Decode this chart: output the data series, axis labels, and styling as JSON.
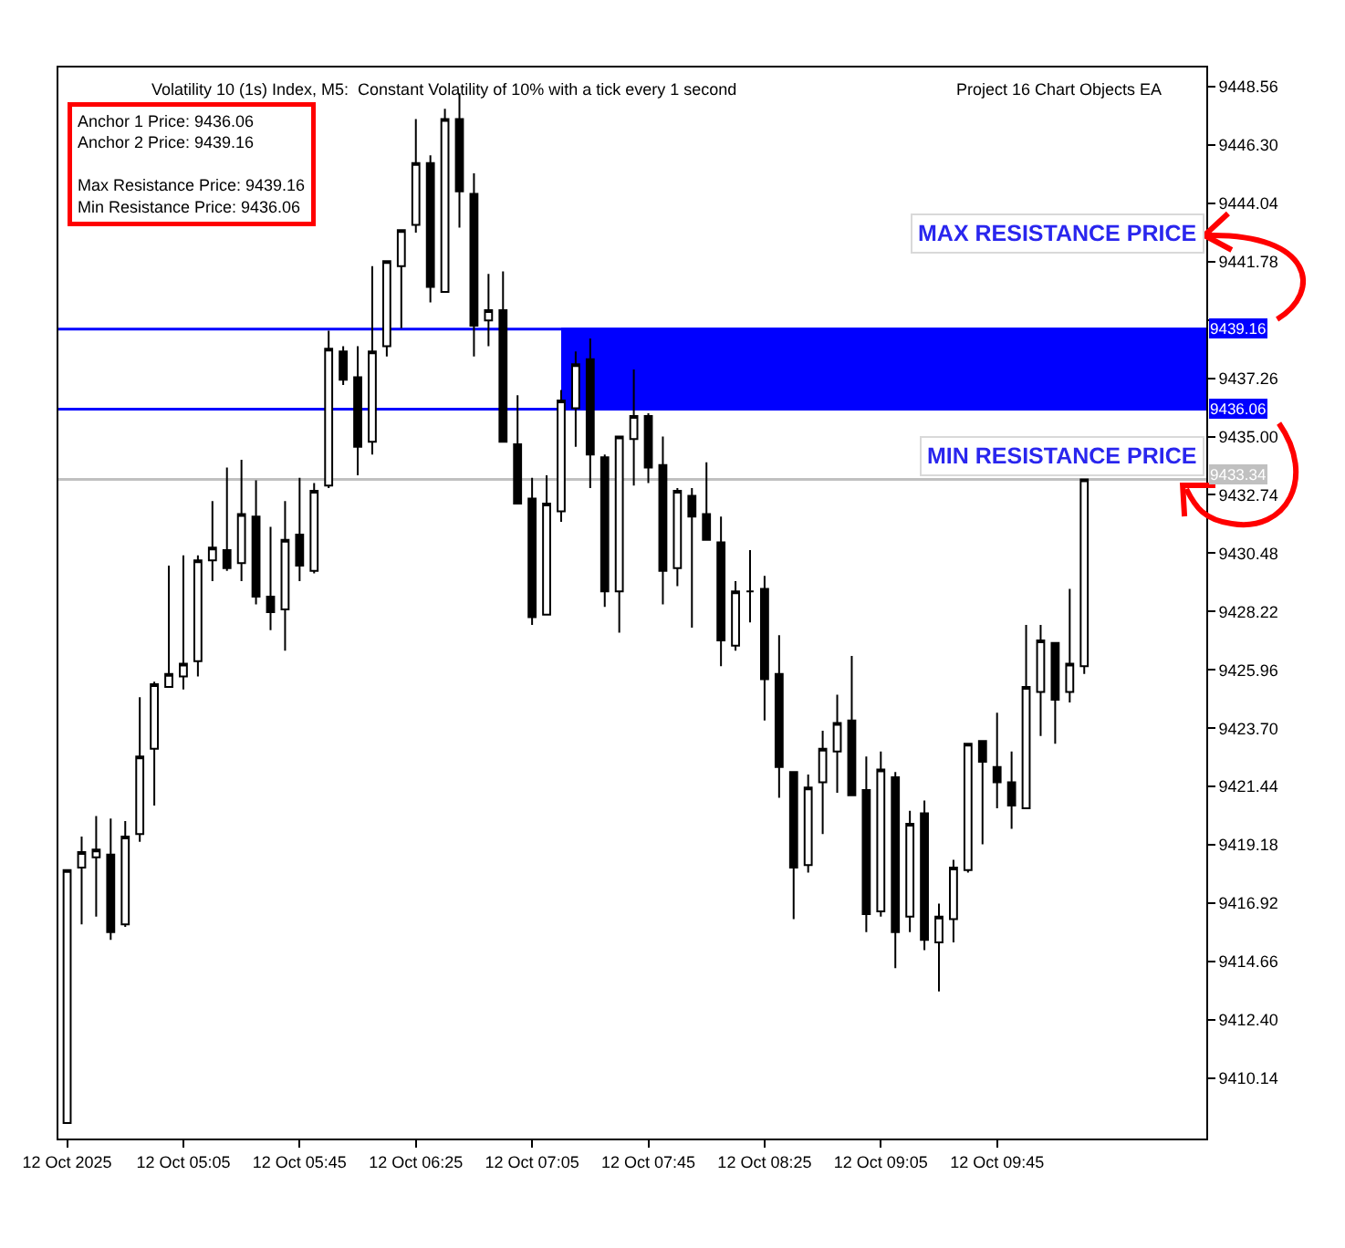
{
  "chart_data": {
    "type": "candlestick",
    "title": "Volatility 10 (1s) Index, M5:  Constant Volatility of 10% with a tick every 1 second",
    "subtitle": "Project 16 Chart Objects EA",
    "annotations": [
      "Anchor 1 Price: 9436.06\nAnchor 2 Price: 9439.16\n\nMax Resistance Price: 9439.16\nMin Resistance Price: 9436.06",
      "MAX RESISTANCE PRICE",
      "MIN RESISTANCE PRICE"
    ],
    "series": [
      {
        "type": "line",
        "color": "#0000ff",
        "x": [
          "2025-10-12T07:15",
          "2025-10-12T10:57"
        ],
        "values": [
          9439.16,
          9439.16
        ],
        "lower": [
          9436.06,
          9436.06
        ],
        "upper": [
          9439.16,
          9439.16
        ]
      },
      {
        "color": "#000000",
        "x": [
          "2025-10-12T04:25",
          "2025-10-12T04:30",
          "2025-10-12T04:35",
          "2025-10-12T04:40",
          "2025-10-12T04:45",
          "2025-10-12T04:50",
          "2025-10-12T04:55",
          "2025-10-12T05:00",
          "2025-10-12T05:05",
          "2025-10-12T05:10",
          "2025-10-12T05:15",
          "2025-10-12T05:20",
          "2025-10-12T05:25",
          "2025-10-12T05:30",
          "2025-10-12T05:35",
          "2025-10-12T05:40",
          "2025-10-12T05:45",
          "2025-10-12T05:50",
          "2025-10-12T05:55",
          "2025-10-12T06:00",
          "2025-10-12T06:05",
          "2025-10-12T06:10",
          "2025-10-12T06:15",
          "2025-10-12T06:20",
          "2025-10-12T06:25",
          "2025-10-12T06:30",
          "2025-10-12T06:35",
          "2025-10-12T06:40",
          "2025-10-12T06:45",
          "2025-10-12T06:50",
          "2025-10-12T06:55",
          "2025-10-12T07:00",
          "2025-10-12T07:05",
          "2025-10-12T07:10",
          "2025-10-12T07:15",
          "2025-10-12T07:20",
          "2025-10-12T07:25",
          "2025-10-12T07:30",
          "2025-10-12T07:35",
          "2025-10-12T07:40",
          "2025-10-12T07:45",
          "2025-10-12T07:50",
          "2025-10-12T07:55",
          "2025-10-12T08:00",
          "2025-10-12T08:05",
          "2025-10-12T08:10",
          "2025-10-12T08:15",
          "2025-10-12T08:20",
          "2025-10-12T08:25",
          "2025-10-12T08:30",
          "2025-10-12T08:35",
          "2025-10-12T08:40",
          "2025-10-12T08:45",
          "2025-10-12T08:50",
          "2025-10-12T08:55",
          "2025-10-12T09:00",
          "2025-10-12T09:05",
          "2025-10-12T09:10",
          "2025-10-12T09:15",
          "2025-10-12T09:20",
          "2025-10-12T09:25",
          "2025-10-12T09:30",
          "2025-10-12T09:35",
          "2025-10-12T09:40",
          "2025-10-12T09:45",
          "2025-10-12T09:50",
          "2025-10-12T09:55",
          "2025-10-12T10:00",
          "2025-10-12T10:05",
          "2025-10-12T10:10",
          "2025-10-12T10:15"
        ],
        "ohlc": [
          [
            9408.4,
            9418.2,
            9408.4,
            9418.2
          ],
          [
            9418.3,
            9419.5,
            9416.1,
            9418.9
          ],
          [
            9418.7,
            9420.3,
            9416.4,
            9419.0
          ],
          [
            9418.8,
            9420.2,
            9415.5,
            9415.8
          ],
          [
            9416.1,
            9420.1,
            9416.0,
            9419.5
          ],
          [
            9419.6,
            9424.9,
            9419.3,
            9422.6
          ],
          [
            9422.9,
            9425.5,
            9420.7,
            9425.4
          ],
          [
            9425.3,
            9430.0,
            9425.3,
            9425.8
          ],
          [
            9425.7,
            9430.4,
            9425.2,
            9426.2
          ],
          [
            9426.3,
            9430.4,
            9425.7,
            9430.2
          ],
          [
            9430.2,
            9432.5,
            9429.4,
            9430.7
          ],
          [
            9430.6,
            9433.8,
            9429.8,
            9429.9
          ],
          [
            9430.1,
            9434.1,
            9429.4,
            9432.0
          ],
          [
            9431.9,
            9433.3,
            9428.5,
            9428.8
          ],
          [
            9428.8,
            9431.5,
            9427.5,
            9428.2
          ],
          [
            9428.3,
            9432.5,
            9426.7,
            9431.0
          ],
          [
            9431.2,
            9433.4,
            9429.4,
            9430.0
          ],
          [
            9429.8,
            9433.2,
            9429.7,
            9432.9
          ],
          [
            9433.1,
            9439.1,
            9433.0,
            9438.4
          ],
          [
            9438.3,
            9438.5,
            9437.0,
            9437.2
          ],
          [
            9437.3,
            9438.5,
            9433.5,
            9434.6
          ],
          [
            9434.8,
            9441.6,
            9434.3,
            9438.3
          ],
          [
            9438.5,
            9441.8,
            9438.1,
            9441.8
          ],
          [
            9441.6,
            9443.0,
            9439.2,
            9443.0
          ],
          [
            9443.2,
            9447.3,
            9442.9,
            9445.6
          ],
          [
            9445.6,
            9445.9,
            9440.2,
            9440.8
          ],
          [
            9440.6,
            9447.7,
            9440.6,
            9447.3
          ],
          [
            9447.3,
            9448.3,
            9443.1,
            9444.5
          ],
          [
            9444.4,
            9445.2,
            9438.1,
            9439.3
          ],
          [
            9439.5,
            9441.3,
            9438.5,
            9439.9
          ],
          [
            9439.9,
            9441.4,
            9434.8,
            9434.8
          ],
          [
            9434.7,
            9436.6,
            9432.4,
            9432.4
          ],
          [
            9432.6,
            9433.4,
            9427.7,
            9428.0
          ],
          [
            9428.1,
            9433.5,
            9428.1,
            9432.4
          ],
          [
            9432.1,
            9436.8,
            9431.7,
            9436.4
          ],
          [
            9436.1,
            9438.3,
            9434.6,
            9437.8
          ],
          [
            9438.0,
            9438.8,
            9433.0,
            9434.3
          ],
          [
            9434.2,
            9434.3,
            9428.4,
            9429.0
          ],
          [
            9429.0,
            9435.0,
            9427.4,
            9435.0
          ],
          [
            9434.9,
            9437.6,
            9433.1,
            9435.8
          ],
          [
            9435.8,
            9435.9,
            9433.2,
            9433.8
          ],
          [
            9433.9,
            9435.0,
            9428.5,
            9429.8
          ],
          [
            9429.9,
            9433.0,
            9429.2,
            9432.9
          ],
          [
            9432.7,
            9433.0,
            9427.6,
            9431.9
          ],
          [
            9432.0,
            9434.0,
            9431.0,
            9431.0
          ],
          [
            9430.9,
            9431.9,
            9426.1,
            9427.1
          ],
          [
            9426.9,
            9429.4,
            9426.7,
            9429.0
          ],
          [
            9429.0,
            9430.6,
            9427.8,
            9429.0
          ],
          [
            9429.1,
            9429.6,
            9424.0,
            9425.6
          ],
          [
            9425.8,
            9427.3,
            9421.0,
            9422.2
          ],
          [
            9422.0,
            9422.0,
            9416.3,
            9418.3
          ],
          [
            9418.4,
            9421.9,
            9418.1,
            9421.4
          ],
          [
            9421.6,
            9423.6,
            9419.6,
            9422.9
          ],
          [
            9422.8,
            9425.0,
            9421.2,
            9423.9
          ],
          [
            9424.0,
            9426.5,
            9421.1,
            9421.1
          ],
          [
            9421.3,
            9422.6,
            9415.8,
            9416.5
          ],
          [
            9416.6,
            9422.8,
            9416.4,
            9422.1
          ],
          [
            9421.8,
            9422.0,
            9414.4,
            9415.8
          ],
          [
            9416.4,
            9420.5,
            9415.8,
            9420.0
          ],
          [
            9420.4,
            9420.9,
            9415.1,
            9415.5
          ],
          [
            9415.4,
            9416.9,
            9413.5,
            9416.4
          ],
          [
            9416.3,
            9418.6,
            9415.4,
            9418.3
          ],
          [
            9418.2,
            9423.1,
            9418.1,
            9423.1
          ],
          [
            9423.2,
            9423.2,
            9419.2,
            9422.4
          ],
          [
            9422.2,
            9424.3,
            9420.6,
            9421.6
          ],
          [
            9421.6,
            9422.8,
            9419.8,
            9420.7
          ],
          [
            9420.6,
            9427.7,
            9420.6,
            9425.3
          ],
          [
            9425.1,
            9427.7,
            9423.4,
            9427.1
          ],
          [
            9427.0,
            9427.0,
            9423.1,
            9424.8
          ],
          [
            9425.1,
            9429.1,
            9424.7,
            9426.2
          ],
          [
            9426.1,
            9433.34,
            9425.8,
            9433.34
          ]
        ]
      }
    ],
    "xlim": [
      "2025-10-12T04:22",
      "2025-10-12T10:57"
    ],
    "xticks": [
      {
        "value": "2025-10-12T04:25",
        "label": "12 Oct 2025"
      },
      {
        "value": "2025-10-12T05:05",
        "label": "12 Oct 05:05"
      },
      {
        "value": "2025-10-12T05:45",
        "label": "12 Oct 05:45"
      },
      {
        "value": "2025-10-12T06:25",
        "label": "12 Oct 06:25"
      },
      {
        "value": "2025-10-12T07:05",
        "label": "12 Oct 07:05"
      },
      {
        "value": "2025-10-12T07:45",
        "label": "12 Oct 07:45"
      },
      {
        "value": "2025-10-12T08:25",
        "label": "12 Oct 08:25"
      },
      {
        "value": "2025-10-12T09:05",
        "label": "12 Oct 09:05"
      },
      {
        "value": "2025-10-12T09:45",
        "label": "12 Oct 09:45"
      }
    ],
    "ylim": [
      9407.8,
      9449.3
    ],
    "yticks": [
      9448.56,
      {
        "value": 9446.3,
        "label": "9446.30"
      },
      9444.04,
      9441.78,
      {
        "value": 9439.52,
        "label": null
      },
      9437.26,
      {
        "value": 9435.0,
        "label": "9435.00"
      },
      9432.74,
      9430.48,
      9428.22,
      9425.96,
      {
        "value": 9423.7,
        "label": "9423.70"
      },
      9421.44,
      9419.18,
      9416.92,
      9414.66,
      {
        "value": 9412.4,
        "label": "9412.40"
      },
      9410.14
    ],
    "ref_lines": [
      {
        "axis": "y",
        "value": 9439.16,
        "label": "9439.16",
        "color": "#0000ff"
      },
      {
        "axis": "y",
        "value": 9436.06,
        "label": "9436.06",
        "color": "#0000ff"
      },
      {
        "axis": "y",
        "value": 9433.34,
        "label": "9433.34",
        "color": "#c0c0c0"
      }
    ]
  }
}
